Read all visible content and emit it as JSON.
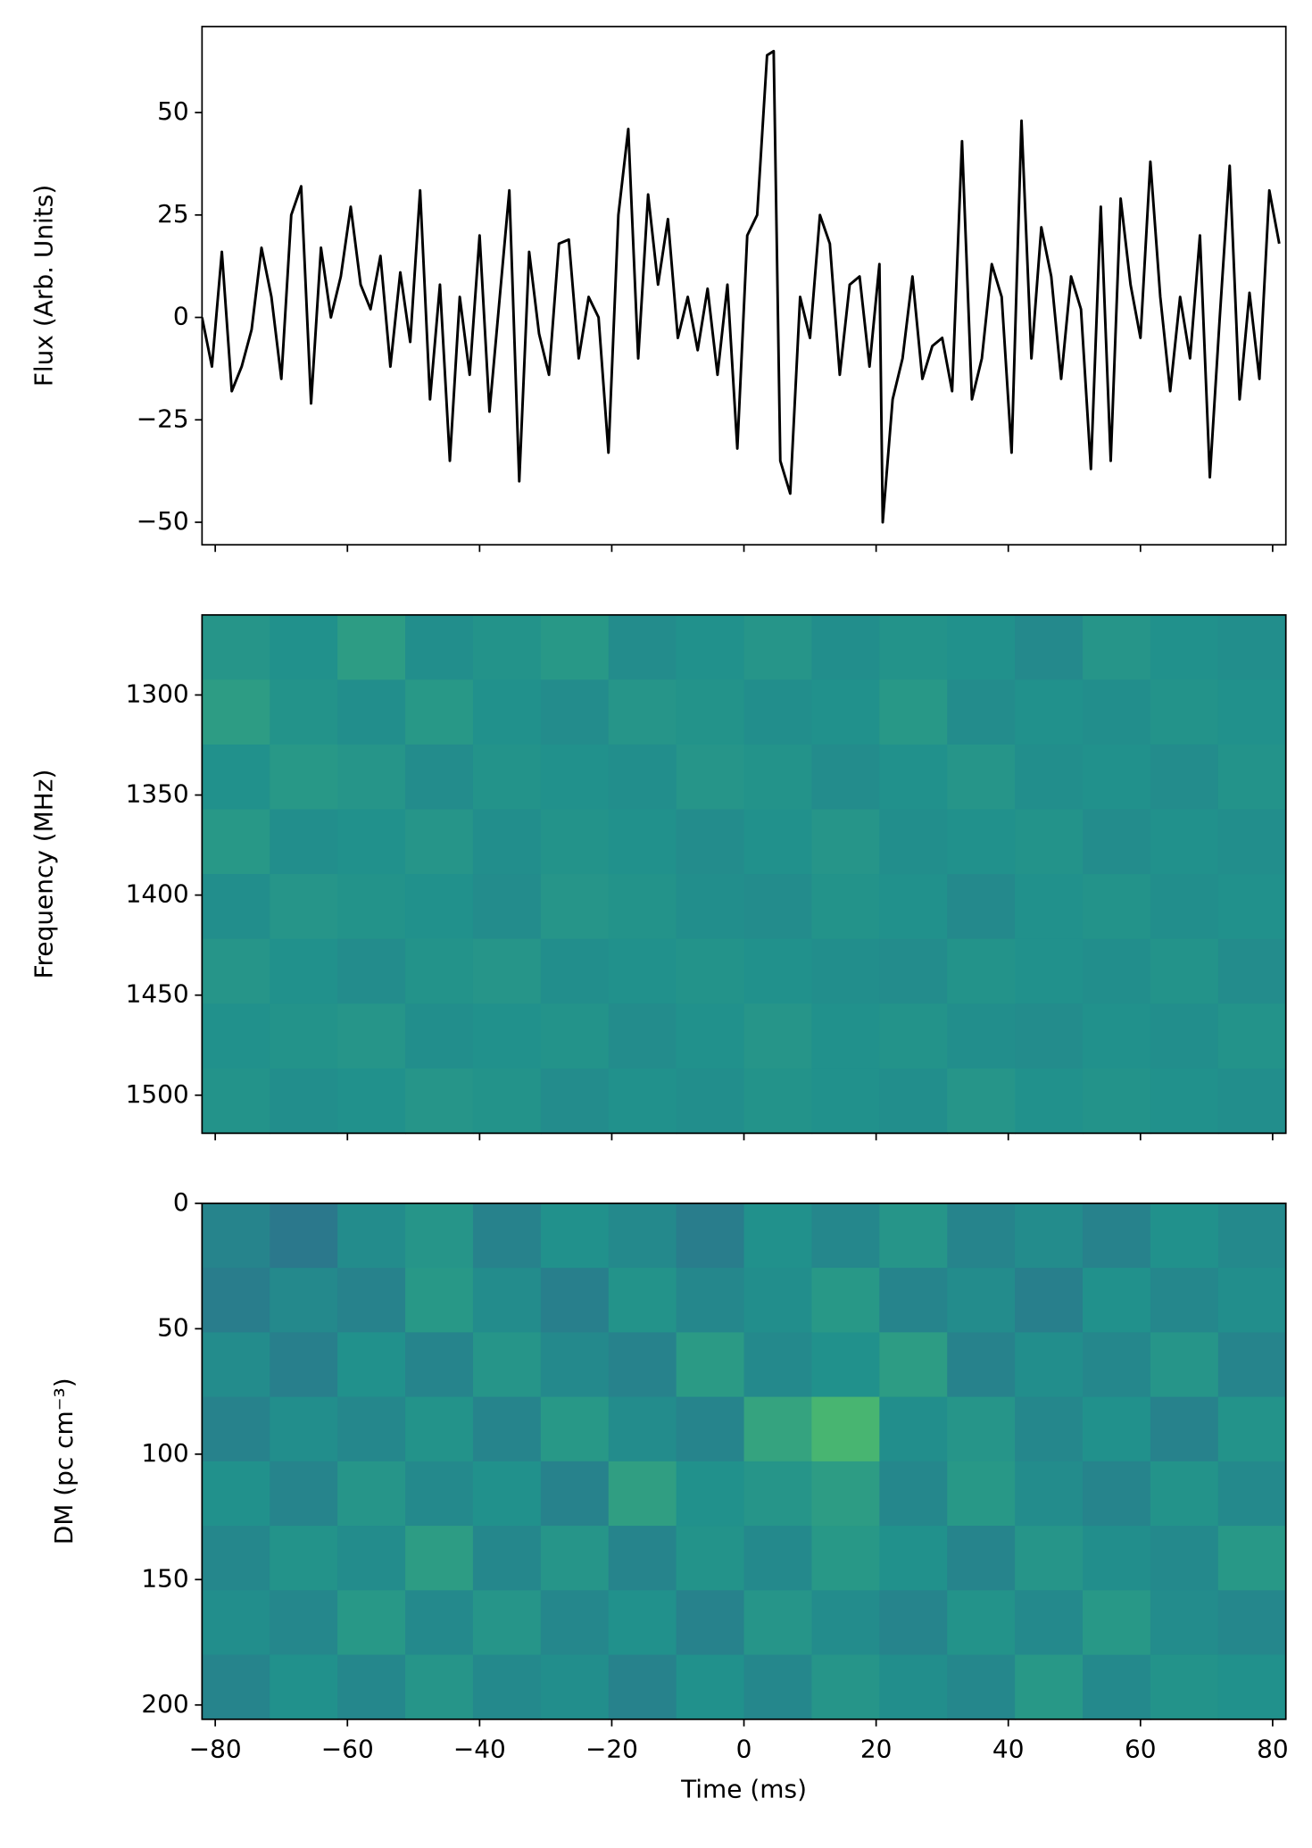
{
  "chart_data": [
    {
      "type": "line",
      "ylabel": "Flux (Arb. Units)",
      "color": "#000000",
      "x": [
        -82,
        -80.5,
        -79,
        -77.5,
        -76,
        -74.5,
        -73,
        -71.5,
        -70,
        -68.5,
        -67,
        -65.5,
        -64,
        -62.5,
        -61,
        -59.5,
        -58,
        -56.5,
        -55,
        -53.5,
        -52,
        -50.5,
        -49,
        -47.5,
        -46,
        -44.5,
        -43,
        -41.5,
        -40,
        -38.5,
        -37,
        -35.5,
        -34,
        -32.5,
        -31,
        -29.5,
        -28,
        -26.5,
        -25,
        -23.5,
        -22,
        -20.5,
        -19,
        -17.5,
        -16,
        -14.5,
        -13,
        -11.5,
        -10,
        -8.5,
        -7,
        -5.5,
        -4,
        -2.5,
        -1,
        0.5,
        2,
        3.5,
        4.5,
        5.5,
        7,
        8.5,
        10,
        11.5,
        13,
        14.5,
        16,
        17.5,
        19,
        20.5,
        21,
        22.5,
        24,
        25.5,
        27,
        28.5,
        30,
        31.5,
        33,
        34.5,
        36,
        37.5,
        39,
        40.5,
        42,
        43.5,
        45,
        46.5,
        48,
        49.5,
        51,
        52.5,
        54,
        55.5,
        57,
        58.5,
        60,
        61.5,
        63,
        64.5,
        66,
        67.5,
        69,
        70.5,
        72,
        73.5,
        75,
        76.5,
        78,
        79.5,
        81
      ],
      "values": [
        0,
        -12,
        16,
        -18,
        -12,
        -3,
        17,
        5,
        -15,
        25,
        32,
        -21,
        17,
        0,
        10,
        27,
        8,
        2,
        15,
        -12,
        11,
        -6,
        31,
        -20,
        8,
        -35,
        5,
        -14,
        20,
        -23,
        4,
        31,
        -40,
        16,
        -4,
        -14,
        18,
        19,
        -10,
        5,
        0,
        -33,
        25,
        46,
        -10,
        30,
        8,
        24,
        -5,
        5,
        -8,
        7,
        -14,
        8,
        -32,
        20,
        25,
        64,
        65,
        -35,
        -43,
        5,
        -5,
        25,
        18,
        -14,
        8,
        10,
        -12,
        13,
        -50,
        -20,
        -10,
        10,
        -15,
        -7,
        -5,
        -18,
        43,
        -20,
        -10,
        13,
        5,
        -33,
        48,
        -10,
        22,
        10,
        -15,
        10,
        2,
        -37,
        27,
        -35,
        29,
        8,
        -5,
        38,
        5,
        -18,
        5,
        -10,
        20,
        -39,
        0,
        37,
        -20,
        6,
        -15,
        31,
        18
      ],
      "xlim": [
        -82,
        82
      ],
      "ylim": [
        -55.5,
        71
      ],
      "xticks": [
        -80,
        -60,
        -40,
        -20,
        0,
        20,
        40,
        60,
        80
      ],
      "yticks": [
        {
          "value": -50,
          "label": "−50"
        },
        {
          "value": -25,
          "label": "−25"
        },
        0,
        25,
        50
      ]
    },
    {
      "type": "heatmap",
      "ylabel": "Frequency (MHz)",
      "colormap": [
        "#440154",
        "#3b528b",
        "#21918c",
        "#5ec962",
        "#fde725"
      ],
      "clim": [
        0,
        1
      ],
      "values": [
        [
          0.52,
          0.5,
          0.55,
          0.49,
          0.51,
          0.53,
          0.48,
          0.5,
          0.52,
          0.49,
          0.51,
          0.5,
          0.47,
          0.52,
          0.5,
          0.49
        ],
        [
          0.55,
          0.51,
          0.49,
          0.53,
          0.5,
          0.48,
          0.52,
          0.51,
          0.49,
          0.5,
          0.53,
          0.48,
          0.5,
          0.49,
          0.51,
          0.5
        ],
        [
          0.5,
          0.53,
          0.52,
          0.48,
          0.51,
          0.5,
          0.49,
          0.52,
          0.51,
          0.48,
          0.5,
          0.52,
          0.49,
          0.5,
          0.48,
          0.51
        ],
        [
          0.53,
          0.49,
          0.5,
          0.52,
          0.49,
          0.51,
          0.5,
          0.48,
          0.5,
          0.52,
          0.49,
          0.5,
          0.51,
          0.48,
          0.5,
          0.49
        ],
        [
          0.49,
          0.52,
          0.51,
          0.5,
          0.48,
          0.52,
          0.51,
          0.49,
          0.48,
          0.51,
          0.5,
          0.47,
          0.5,
          0.51,
          0.49,
          0.5
        ],
        [
          0.52,
          0.5,
          0.48,
          0.51,
          0.52,
          0.49,
          0.5,
          0.51,
          0.5,
          0.49,
          0.48,
          0.51,
          0.5,
          0.49,
          0.51,
          0.48
        ],
        [
          0.5,
          0.51,
          0.52,
          0.49,
          0.5,
          0.51,
          0.48,
          0.5,
          0.52,
          0.5,
          0.51,
          0.49,
          0.48,
          0.5,
          0.49,
          0.51
        ],
        [
          0.51,
          0.49,
          0.5,
          0.52,
          0.51,
          0.48,
          0.5,
          0.49,
          0.51,
          0.5,
          0.49,
          0.52,
          0.5,
          0.51,
          0.5,
          0.49
        ]
      ],
      "xlim": [
        -82,
        82
      ],
      "ylim": [
        1519,
        1260
      ],
      "xticks": [
        -80,
        -60,
        -40,
        -20,
        0,
        20,
        40,
        60,
        80
      ],
      "yticks": [
        1300,
        1350,
        1400,
        1450,
        1500
      ]
    },
    {
      "type": "heatmap",
      "xlabel": "Time (ms)",
      "ylabel": "DM (pc cm⁻³)",
      "colormap": [
        "#440154",
        "#3b528b",
        "#21918c",
        "#5ec962",
        "#fde725"
      ],
      "clim": [
        0,
        1
      ],
      "values": [
        [
          0.45,
          0.4,
          0.48,
          0.52,
          0.44,
          0.5,
          0.47,
          0.42,
          0.5,
          0.46,
          0.52,
          0.45,
          0.48,
          0.44,
          0.5,
          0.47
        ],
        [
          0.42,
          0.47,
          0.44,
          0.53,
          0.48,
          0.43,
          0.51,
          0.46,
          0.49,
          0.53,
          0.45,
          0.48,
          0.43,
          0.5,
          0.46,
          0.49
        ],
        [
          0.48,
          0.43,
          0.5,
          0.45,
          0.52,
          0.47,
          0.44,
          0.54,
          0.47,
          0.5,
          0.55,
          0.44,
          0.49,
          0.46,
          0.52,
          0.45
        ],
        [
          0.44,
          0.49,
          0.46,
          0.51,
          0.45,
          0.53,
          0.48,
          0.45,
          0.58,
          0.66,
          0.49,
          0.52,
          0.46,
          0.5,
          0.44,
          0.51
        ],
        [
          0.5,
          0.45,
          0.52,
          0.47,
          0.5,
          0.44,
          0.56,
          0.5,
          0.52,
          0.55,
          0.46,
          0.53,
          0.48,
          0.45,
          0.51,
          0.47
        ],
        [
          0.46,
          0.51,
          0.48,
          0.55,
          0.46,
          0.52,
          0.45,
          0.51,
          0.47,
          0.53,
          0.5,
          0.45,
          0.52,
          0.49,
          0.47,
          0.53
        ],
        [
          0.49,
          0.46,
          0.53,
          0.47,
          0.52,
          0.46,
          0.5,
          0.44,
          0.52,
          0.48,
          0.45,
          0.51,
          0.47,
          0.53,
          0.48,
          0.46
        ],
        [
          0.45,
          0.5,
          0.46,
          0.52,
          0.47,
          0.49,
          0.44,
          0.5,
          0.46,
          0.52,
          0.49,
          0.46,
          0.53,
          0.47,
          0.51,
          0.5
        ]
      ],
      "xlim": [
        -82,
        82
      ],
      "ylim": [
        205.7,
        0
      ],
      "xticks": [
        {
          "value": -80,
          "label": "−80"
        },
        {
          "value": -60,
          "label": "−60"
        },
        {
          "value": -40,
          "label": "−40"
        },
        {
          "value": -20,
          "label": "−20"
        },
        0,
        20,
        40,
        60,
        80
      ],
      "yticks": [
        0,
        50,
        100,
        150,
        200
      ]
    }
  ]
}
